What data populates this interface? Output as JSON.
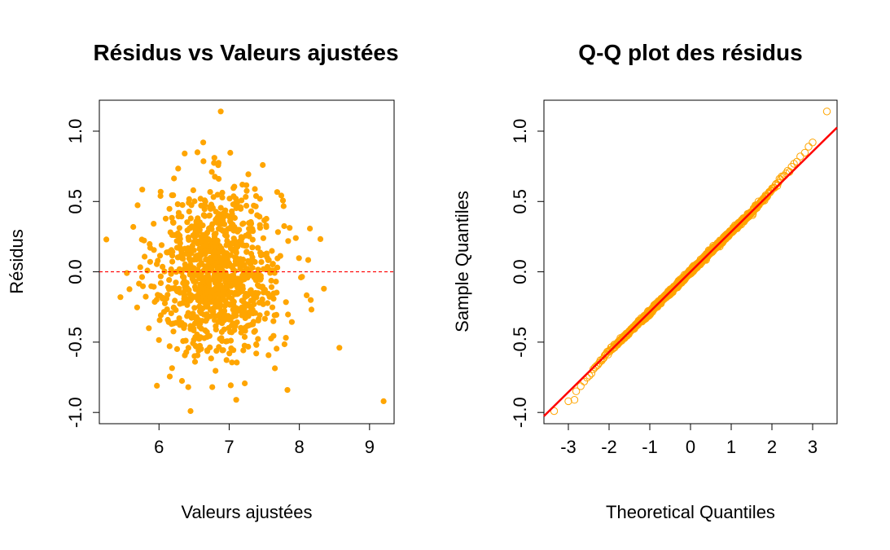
{
  "chart_data": [
    {
      "type": "scatter",
      "title": "Résidus vs Valeurs ajustées",
      "xlabel": "Valeurs ajustées",
      "ylabel": "Résidus",
      "xlim": [
        5.15,
        9.35
      ],
      "ylim": [
        -1.08,
        1.22
      ],
      "xticks": [
        6,
        7,
        8,
        9
      ],
      "yticks": [
        -1.0,
        -0.5,
        0.0,
        0.5,
        1.0
      ],
      "xtick_labels": [
        "6",
        "7",
        "8",
        "9"
      ],
      "ytick_labels": [
        "-1.0",
        "-0.5",
        "0.0",
        "0.5",
        "1.0"
      ],
      "point_color": "#FFA500",
      "reference_line": {
        "y": 0,
        "color": "#FF0000",
        "style": "dashed"
      },
      "grid": false,
      "n_points": 1000,
      "distribution": {
        "x_center": 6.85,
        "x_sd": 0.45,
        "y_center": 0.0,
        "y_sd": 0.3
      },
      "outliers": [
        {
          "x": 6.88,
          "y": 1.14
        },
        {
          "x": 9.2,
          "y": -0.92
        },
        {
          "x": 6.45,
          "y": -0.99
        },
        {
          "x": 7.1,
          "y": -0.91
        },
        {
          "x": 5.25,
          "y": 0.23
        },
        {
          "x": 8.57,
          "y": -0.54
        },
        {
          "x": 7.83,
          "y": -0.84
        },
        {
          "x": 5.97,
          "y": -0.81
        },
        {
          "x": 6.63,
          "y": 0.92
        },
        {
          "x": 5.45,
          "y": -0.18
        },
        {
          "x": 7.95,
          "y": 0.24
        },
        {
          "x": 8.35,
          "y": -0.12
        }
      ]
    },
    {
      "type": "scatter",
      "title": "Q-Q plot des résidus",
      "xlabel": "Theoretical Quantiles",
      "ylabel": "Sample Quantiles",
      "xlim": [
        -3.6,
        3.6
      ],
      "ylim": [
        -1.08,
        1.22
      ],
      "xticks": [
        -3,
        -2,
        -1,
        0,
        1,
        2,
        3
      ],
      "yticks": [
        -1.0,
        -0.5,
        0.0,
        0.5,
        1.0
      ],
      "xtick_labels": [
        "-3",
        "-2",
        "-1",
        "0",
        "1",
        "2",
        "3"
      ],
      "ytick_labels": [
        "-1.0",
        "-0.5",
        "0.0",
        "0.5",
        "1.0"
      ],
      "point_color": "#FFA500",
      "point_style": "open-circle",
      "reference_line": {
        "intercept": 0.0,
        "slope": 0.285,
        "color": "#FF0000",
        "style": "solid"
      },
      "grid": false,
      "n_points": 1000,
      "extremes": [
        {
          "x": -3.35,
          "y": -0.99
        },
        {
          "x": -3.0,
          "y": -0.92
        },
        {
          "x": -2.85,
          "y": -0.91
        },
        {
          "x": 3.35,
          "y": 1.14
        },
        {
          "x": 3.0,
          "y": 0.92
        },
        {
          "x": 2.9,
          "y": 0.89
        }
      ]
    }
  ]
}
